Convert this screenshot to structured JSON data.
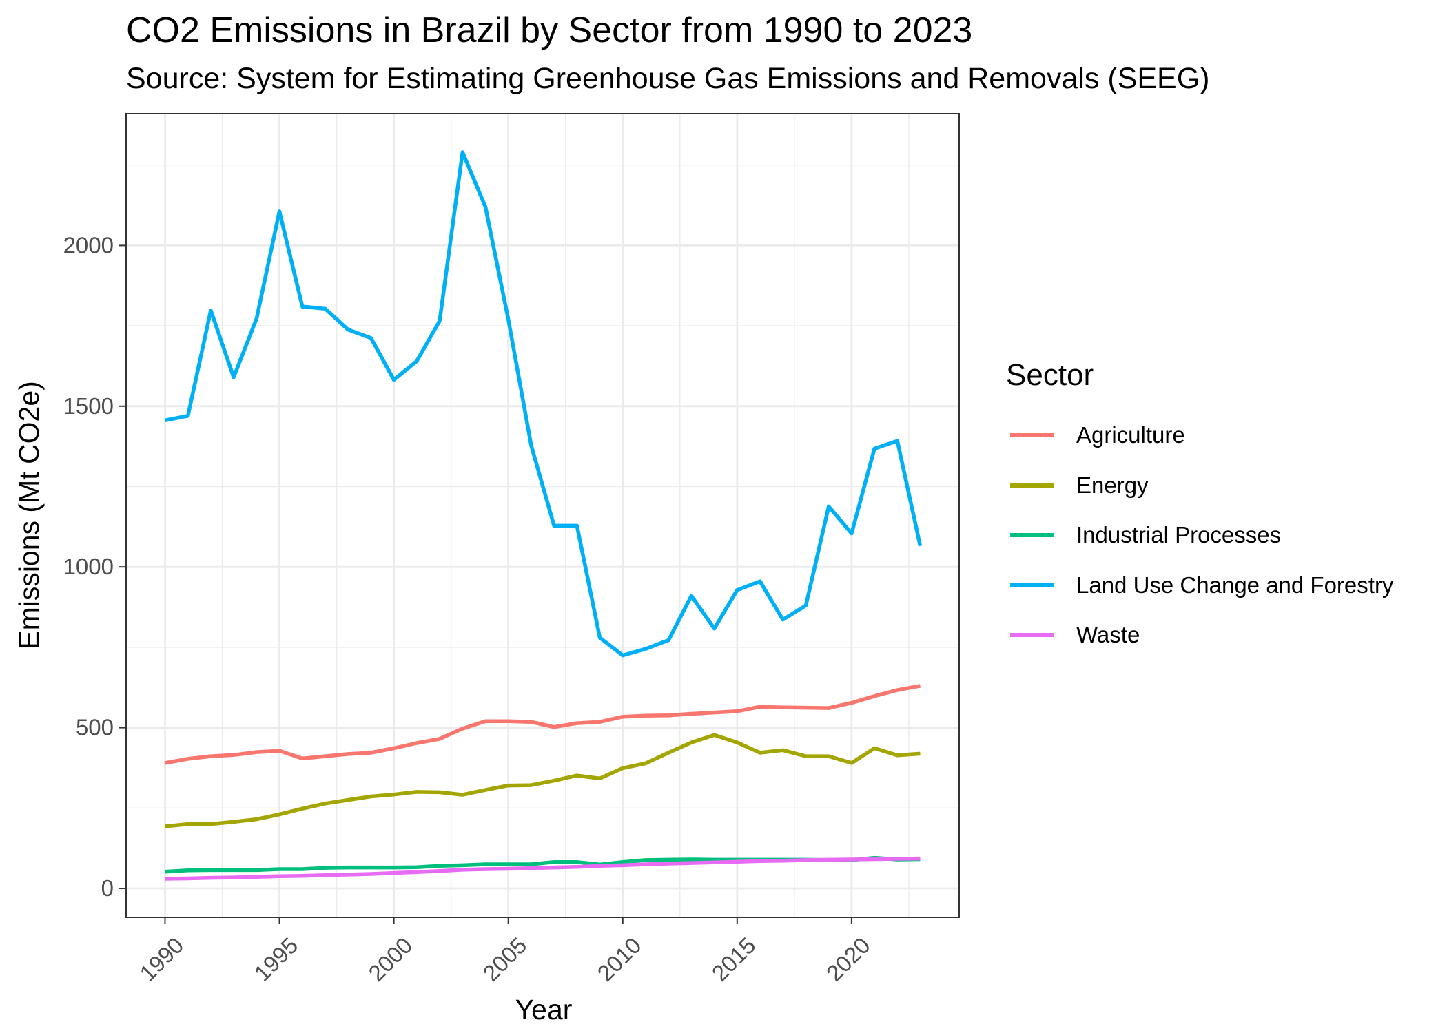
{
  "chart_data": {
    "type": "line",
    "title": "CO2 Emissions in Brazil by Sector from 1990 to 2023",
    "subtitle": "Source: System for Estimating Greenhouse Gas Emissions and Removals (SEEG)",
    "xlabel": "Year",
    "ylabel": "Emissions (Mt CO2e)",
    "xlim": [
      1988.3,
      2024.7
    ],
    "ylim": [
      -90,
      2410
    ],
    "xticks": [
      1990,
      1995,
      2000,
      2005,
      2010,
      2015,
      2020
    ],
    "yticks": [
      0,
      500,
      1000,
      1500,
      2000
    ],
    "grid": true,
    "legend_title": "Sector",
    "legend_position": "right",
    "x": [
      1990,
      1991,
      1992,
      1993,
      1994,
      1995,
      1996,
      1997,
      1998,
      1999,
      2000,
      2001,
      2002,
      2003,
      2004,
      2005,
      2006,
      2007,
      2008,
      2009,
      2010,
      2011,
      2012,
      2013,
      2014,
      2015,
      2016,
      2017,
      2018,
      2019,
      2020,
      2021,
      2022,
      2023
    ],
    "series": [
      {
        "name": "Agriculture",
        "color": "#F8766D",
        "values": [
          390,
          403,
          411,
          415,
          424,
          428,
          404,
          411,
          418,
          422,
          436,
          452,
          465,
          497,
          520,
          520,
          518,
          502,
          514,
          518,
          534,
          537,
          538,
          543,
          547,
          551,
          565,
          563,
          562,
          561,
          577,
          598,
          617,
          630
        ]
      },
      {
        "name": "Energy",
        "color": "#A3A500",
        "values": [
          193,
          200,
          200,
          207,
          215,
          230,
          248,
          264,
          275,
          286,
          292,
          300,
          299,
          291,
          306,
          320,
          321,
          335,
          351,
          342,
          374,
          389,
          422,
          454,
          477,
          454,
          422,
          430,
          411,
          411,
          390,
          436,
          414,
          419
        ]
      },
      {
        "name": "Industrial Processes",
        "color": "#00BF7D",
        "values": [
          52,
          56,
          57,
          57,
          57,
          60,
          60,
          64,
          65,
          65,
          65,
          66,
          70,
          72,
          75,
          75,
          75,
          82,
          82,
          74,
          82,
          88,
          89,
          90,
          89,
          89,
          89,
          89,
          89,
          88,
          88,
          95,
          90,
          91
        ]
      },
      {
        "name": "Land Use Change and Forestry",
        "color": "#00B0F6",
        "values": [
          1456,
          1470,
          1798,
          1590,
          1772,
          2106,
          1810,
          1803,
          1738,
          1712,
          1582,
          1640,
          1765,
          2290,
          2120,
          1770,
          1378,
          1128,
          1128,
          780,
          725,
          745,
          772,
          910,
          808,
          928,
          955,
          836,
          880,
          1188,
          1104,
          1368,
          1392,
          1065
        ]
      },
      {
        "name": "Waste",
        "color": "#E76BF3",
        "values": [
          30,
          31,
          33,
          34,
          36,
          38,
          39,
          41,
          43,
          45,
          48,
          51,
          54,
          58,
          60,
          61,
          63,
          65,
          67,
          70,
          72,
          75,
          77,
          79,
          81,
          83,
          85,
          86,
          88,
          89,
          90,
          91,
          92,
          93
        ]
      }
    ]
  }
}
